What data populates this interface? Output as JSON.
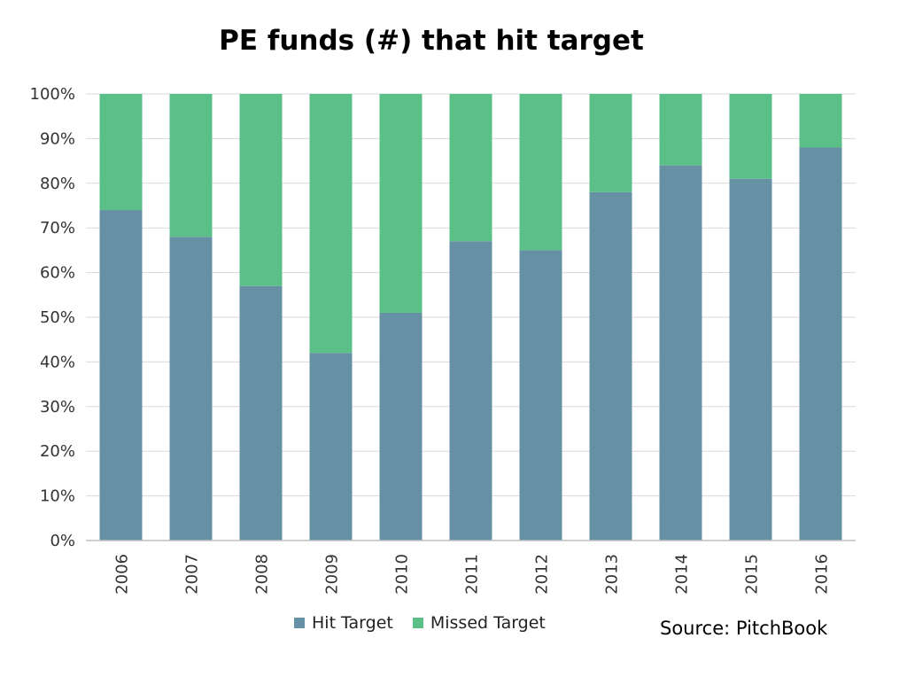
{
  "chart_data": {
    "type": "bar",
    "stacked": true,
    "title": "PE funds (#) that hit target",
    "xlabel": "",
    "ylabel": "",
    "ylim": [
      0,
      100
    ],
    "y_unit": "%",
    "y_ticks": [
      "0%",
      "10%",
      "20%",
      "30%",
      "40%",
      "50%",
      "60%",
      "70%",
      "80%",
      "90%",
      "100%"
    ],
    "categories": [
      "2006",
      "2007",
      "2008",
      "2009",
      "2010",
      "2011",
      "2012",
      "2013",
      "2014",
      "2015",
      "2016"
    ],
    "series": [
      {
        "name": "Hit Target",
        "color": "#6690a4",
        "values": [
          74,
          68,
          57,
          42,
          51,
          67,
          65,
          78,
          84,
          81,
          88
        ]
      },
      {
        "name": "Missed Target",
        "color": "#5bbf88",
        "values": [
          26,
          32,
          43,
          58,
          49,
          33,
          35,
          22,
          16,
          19,
          12
        ]
      }
    ],
    "grid": true,
    "legend_position": "bottom"
  },
  "source": "Source: PitchBook"
}
